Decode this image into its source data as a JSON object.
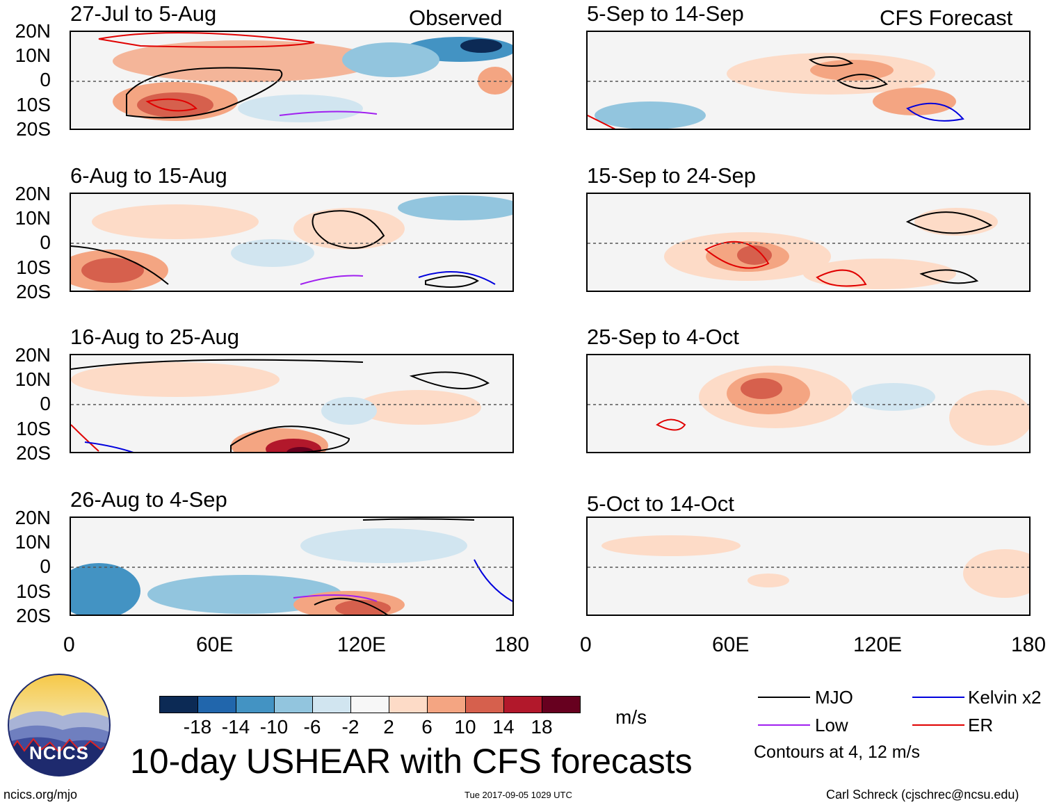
{
  "header": {
    "observed_label": "Observed",
    "forecast_label": "CFS Forecast"
  },
  "panels": [
    {
      "title": "27-Jul to 5-Aug",
      "side": "observed"
    },
    {
      "title": "6-Aug to 15-Aug",
      "side": "observed"
    },
    {
      "title": "16-Aug to 25-Aug",
      "side": "observed"
    },
    {
      "title": "26-Aug to 4-Sep",
      "side": "observed"
    },
    {
      "title": "5-Sep to 14-Sep",
      "side": "forecast"
    },
    {
      "title": "15-Sep to 24-Sep",
      "side": "forecast"
    },
    {
      "title": "25-Sep to 4-Oct",
      "side": "forecast"
    },
    {
      "title": "5-Oct to 14-Oct",
      "side": "forecast"
    }
  ],
  "axes": {
    "lat_labels": [
      "20N",
      "10N",
      "0",
      "10S",
      "20S"
    ],
    "lon_labels": [
      "0",
      "60E",
      "120E",
      "180"
    ]
  },
  "colorbar": {
    "colors": [
      "#0c2a55",
      "#2166ac",
      "#4393c3",
      "#92c5de",
      "#d1e5f0",
      "#f7f7f7",
      "#fddbc7",
      "#f4a582",
      "#d6604d",
      "#b2182b",
      "#67001f"
    ],
    "labels": [
      "-18",
      "-14",
      "-10",
      "-6",
      "-2",
      "2",
      "6",
      "10",
      "14",
      "18"
    ],
    "units": "m/s"
  },
  "legend": {
    "items": [
      {
        "label": "MJO",
        "color": "#000000"
      },
      {
        "label": "Low",
        "color": "#a020f0"
      },
      {
        "label": "Kelvin x2",
        "color": "#0000dd"
      },
      {
        "label": "ER",
        "color": "#e00000"
      }
    ],
    "note": "Contours at 4, 12 m/s"
  },
  "title": "10-day USHEAR with CFS forecasts",
  "logo_text": "NCICS",
  "footer": {
    "left": "ncics.org/mjo",
    "center": "Tue 2017-09-05 1029 UTC",
    "right": "Carl Schreck (cjschrec@ncsu.edu)"
  }
}
